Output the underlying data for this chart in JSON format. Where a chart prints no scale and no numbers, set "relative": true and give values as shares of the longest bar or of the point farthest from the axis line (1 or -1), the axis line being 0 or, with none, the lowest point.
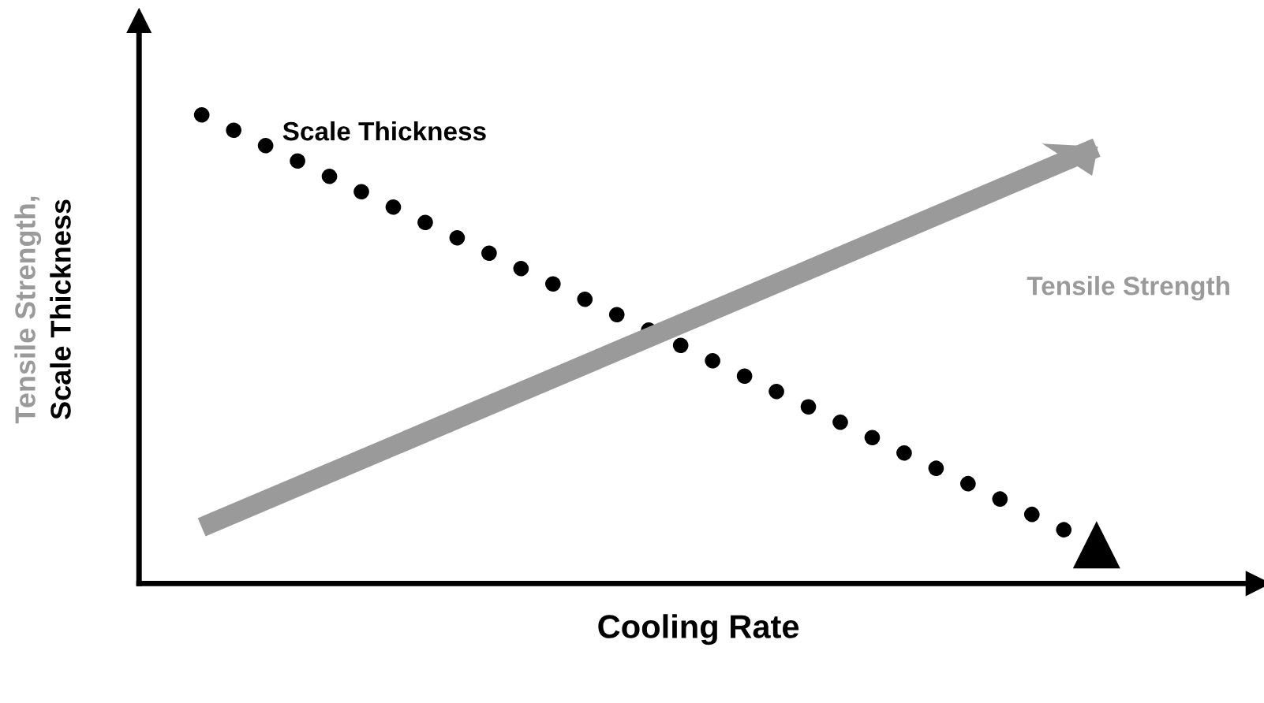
{
  "chart_data": {
    "type": "line",
    "relative": true,
    "xlabel": "Cooling Rate",
    "ylabel": "Tensile Strength,\nScale Thickness",
    "categories": [
      null,
      null
    ],
    "series": [
      {
        "name": "Scale Thickness",
        "color": "#000000",
        "values": [
          1,
          0.081
        ],
        "line_style": "dotted",
        "marker": "triangle"
      },
      {
        "name": "Tensile Strength",
        "color": "#9a9a9a",
        "values": [
          0.12,
          0.93
        ],
        "line_style": "solid",
        "marker": "none"
      }
    ]
  }
}
